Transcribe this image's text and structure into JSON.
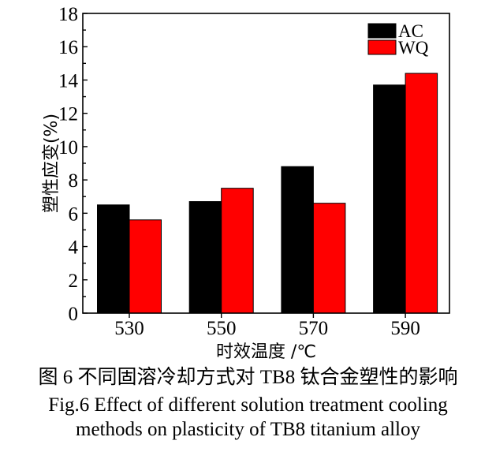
{
  "chart_data": {
    "type": "bar",
    "categories": [
      "530",
      "550",
      "570",
      "590"
    ],
    "series": [
      {
        "name": "AC",
        "color": "#000000",
        "values": [
          6.5,
          6.7,
          8.8,
          13.7
        ]
      },
      {
        "name": "WQ",
        "color": "#ff0000",
        "values": [
          5.6,
          7.5,
          6.6,
          14.4
        ]
      }
    ],
    "xlabel": "时效温度 /℃",
    "ylabel": "塑性应变(%)",
    "ylim": [
      0,
      18
    ],
    "yticks": [
      0,
      2,
      4,
      6,
      8,
      10,
      12,
      14,
      16,
      18
    ],
    "grid": false,
    "legend_position": "top-right"
  },
  "caption": {
    "cn": "图 6  不同固溶冷却方式对 TB8 钛合金塑性的影响",
    "en_line1": "Fig.6  Effect of different solution treatment cooling",
    "en_line2": "methods on plasticity of TB8 titanium alloy"
  }
}
